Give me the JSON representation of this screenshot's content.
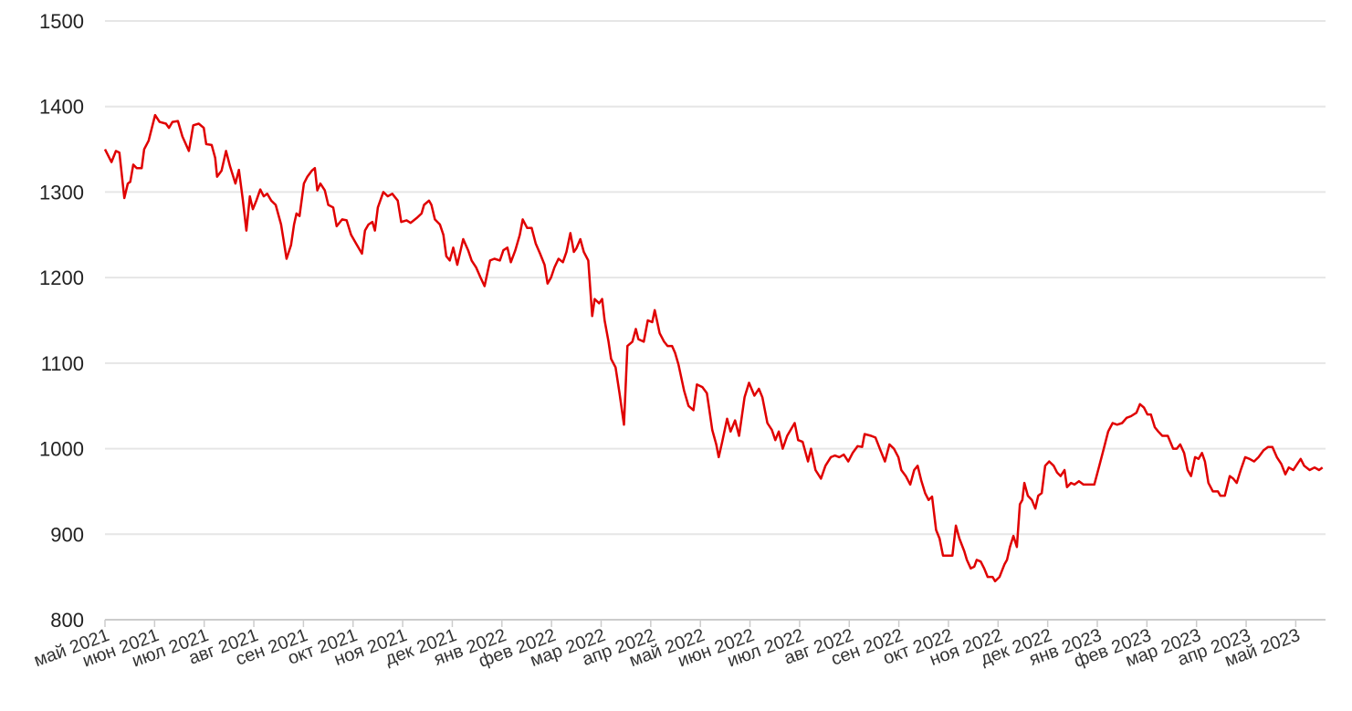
{
  "chart_data": {
    "type": "line",
    "xlim": [
      0,
      24.6
    ],
    "xticks": [
      {
        "value": 0,
        "label": "май 2021"
      },
      {
        "value": 1,
        "label": "июн 2021"
      },
      {
        "value": 2,
        "label": "июл 2021"
      },
      {
        "value": 3,
        "label": "авг 2021"
      },
      {
        "value": 4,
        "label": "сен 2021"
      },
      {
        "value": 5,
        "label": "окт 2021"
      },
      {
        "value": 6,
        "label": "ноя 2021"
      },
      {
        "value": 7,
        "label": "дек 2021"
      },
      {
        "value": 8,
        "label": "янв 2022"
      },
      {
        "value": 9,
        "label": "фев 2022"
      },
      {
        "value": 10,
        "label": "мар 2022"
      },
      {
        "value": 11,
        "label": "апр 2022"
      },
      {
        "value": 12,
        "label": "май 2022"
      },
      {
        "value": 13,
        "label": "июн 2022"
      },
      {
        "value": 14,
        "label": "июл 2022"
      },
      {
        "value": 15,
        "label": "авг 2022"
      },
      {
        "value": 16,
        "label": "сен 2022"
      },
      {
        "value": 17,
        "label": "окт 2022"
      },
      {
        "value": 18,
        "label": "ноя 2022"
      },
      {
        "value": 19,
        "label": "дек 2022"
      },
      {
        "value": 20,
        "label": "янв 2023"
      },
      {
        "value": 21,
        "label": "фев 2023"
      },
      {
        "value": 22,
        "label": "мар 2023"
      },
      {
        "value": 23,
        "label": "апр 2023"
      },
      {
        "value": 24,
        "label": "май 2023"
      }
    ],
    "ylim": [
      800,
      1500
    ],
    "yticks": [
      800,
      900,
      1000,
      1100,
      1200,
      1300,
      1400,
      1500
    ],
    "grid": true,
    "color": "#e00000",
    "x": [
      0,
      0.13,
      0.22,
      0.29,
      0.39,
      0.46,
      0.51,
      0.57,
      0.64,
      0.74,
      0.79,
      0.88,
      1.01,
      1.1,
      1.23,
      1.29,
      1.36,
      1.47,
      1.56,
      1.69,
      1.78,
      1.89,
      1.99,
      2.04,
      2.15,
      2.22,
      2.26,
      2.35,
      2.44,
      2.52,
      2.63,
      2.7,
      2.78,
      2.85,
      2.92,
      2.98,
      3.05,
      3.13,
      3.2,
      3.27,
      3.35,
      3.44,
      3.55,
      3.66,
      3.75,
      3.81,
      3.86,
      3.92,
      4.01,
      4.08,
      4.17,
      4.23,
      4.28,
      4.34,
      4.43,
      4.5,
      4.6,
      4.67,
      4.78,
      4.87,
      4.96,
      5.06,
      5.18,
      5.24,
      5.31,
      5.39,
      5.44,
      5.5,
      5.61,
      5.7,
      5.79,
      5.9,
      5.97,
      6.08,
      6.16,
      6.29,
      6.38,
      6.43,
      6.53,
      6.58,
      6.65,
      6.75,
      6.82,
      6.88,
      6.95,
      7.02,
      7.1,
      7.22,
      7.32,
      7.39,
      7.48,
      7.57,
      7.65,
      7.76,
      7.85,
      7.96,
      8.03,
      8.11,
      8.18,
      8.27,
      8.36,
      8.42,
      8.51,
      8.6,
      8.68,
      8.77,
      8.86,
      8.92,
      8.99,
      9.06,
      9.14,
      9.23,
      9.3,
      9.38,
      9.45,
      9.5,
      9.58,
      9.65,
      9.74,
      9.82,
      9.87,
      9.96,
      10.02,
      10.07,
      10.15,
      10.2,
      10.29,
      10.37,
      10.46,
      10.53,
      10.63,
      10.7,
      10.75,
      10.86,
      10.94,
      11.03,
      11.08,
      11.18,
      11.27,
      11.34,
      11.43,
      11.49,
      11.56,
      11.67,
      11.76,
      11.86,
      11.93,
      12.04,
      12.13,
      12.17,
      12.24,
      12.32,
      12.37,
      12.44,
      12.54,
      12.61,
      12.7,
      12.78,
      12.89,
      12.98,
      13.09,
      13.18,
      13.25,
      13.35,
      13.44,
      13.51,
      13.58,
      13.66,
      13.75,
      13.82,
      13.9,
      13.97,
      14.06,
      14.17,
      14.23,
      14.32,
      14.43,
      14.52,
      14.63,
      14.71,
      14.8,
      14.89,
      14.98,
      15.07,
      15.17,
      15.26,
      15.31,
      15.44,
      15.53,
      15.63,
      15.72,
      15.81,
      15.9,
      15.99,
      16.05,
      16.14,
      16.23,
      16.31,
      16.38,
      16.45,
      16.53,
      16.6,
      16.67,
      16.75,
      16.82,
      16.89,
      17,
      17.08,
      17.15,
      17.22,
      17.32,
      17.37,
      17.45,
      17.52,
      17.57,
      17.65,
      17.72,
      17.79,
      17.89,
      17.94,
      18.03,
      18.13,
      18.18,
      18.24,
      18.31,
      18.38,
      18.44,
      18.49,
      18.53,
      18.6,
      18.68,
      18.75,
      18.81,
      18.88,
      18.95,
      19.03,
      19.12,
      19.19,
      19.26,
      19.34,
      19.39,
      19.47,
      19.54,
      19.63,
      19.72,
      19.83,
      19.94,
      20.04,
      20.13,
      20.22,
      20.31,
      20.4,
      20.5,
      20.59,
      20.68,
      20.79,
      20.86,
      20.94,
      21.01,
      21.08,
      21.16,
      21.23,
      21.31,
      21.42,
      21.53,
      21.6,
      21.67,
      21.75,
      21.82,
      21.89,
      21.97,
      22.04,
      22.11,
      22.17,
      22.24,
      22.33,
      22.43,
      22.48,
      22.57,
      22.67,
      22.74,
      22.81,
      22.89,
      22.98,
      23.07,
      23.16,
      23.25,
      23.35,
      23.44,
      23.53,
      23.62,
      23.71,
      23.79,
      23.86,
      23.95,
      24.03,
      24.1,
      24.17,
      24.28,
      24.38,
      24.47,
      24.54
    ],
    "values": [
      1350,
      1335,
      1348,
      1346,
      1293,
      1310,
      1312,
      1332,
      1328,
      1328,
      1350,
      1360,
      1390,
      1382,
      1380,
      1375,
      1382,
      1383,
      1365,
      1348,
      1378,
      1380,
      1375,
      1356,
      1355,
      1340,
      1318,
      1325,
      1348,
      1330,
      1310,
      1326,
      1290,
      1255,
      1295,
      1280,
      1290,
      1303,
      1295,
      1298,
      1290,
      1285,
      1262,
      1222,
      1238,
      1262,
      1275,
      1272,
      1310,
      1318,
      1325,
      1328,
      1302,
      1310,
      1302,
      1285,
      1282,
      1260,
      1268,
      1267,
      1250,
      1240,
      1228,
      1255,
      1262,
      1265,
      1255,
      1282,
      1300,
      1295,
      1298,
      1290,
      1265,
      1267,
      1264,
      1270,
      1275,
      1285,
      1290,
      1285,
      1268,
      1262,
      1250,
      1225,
      1220,
      1235,
      1215,
      1245,
      1232,
      1220,
      1212,
      1200,
      1190,
      1220,
      1222,
      1220,
      1232,
      1235,
      1218,
      1232,
      1250,
      1268,
      1258,
      1258,
      1240,
      1228,
      1215,
      1193,
      1200,
      1212,
      1222,
      1218,
      1230,
      1252,
      1230,
      1234,
      1245,
      1230,
      1220,
      1155,
      1175,
      1170,
      1175,
      1150,
      1125,
      1105,
      1095,
      1065,
      1028,
      1120,
      1125,
      1140,
      1128,
      1125,
      1150,
      1148,
      1162,
      1135,
      1125,
      1120,
      1120,
      1112,
      1098,
      1068,
      1050,
      1045,
      1075,
      1072,
      1065,
      1050,
      1022,
      1005,
      990,
      1008,
      1035,
      1020,
      1033,
      1015,
      1060,
      1077,
      1062,
      1070,
      1060,
      1030,
      1022,
      1010,
      1020,
      1000,
      1015,
      1022,
      1030,
      1010,
      1008,
      985,
      1000,
      975,
      965,
      980,
      990,
      992,
      990,
      993,
      985,
      995,
      1003,
      1002,
      1017,
      1015,
      1013,
      998,
      985,
      1005,
      1000,
      990,
      975,
      968,
      958,
      975,
      980,
      963,
      948,
      940,
      944,
      905,
      895,
      875,
      875,
      875,
      910,
      895,
      880,
      870,
      860,
      862,
      870,
      868,
      860,
      850,
      850,
      845,
      850,
      865,
      870,
      885,
      898,
      885,
      935,
      940,
      960,
      945,
      940,
      930,
      945,
      948,
      980,
      985,
      980,
      972,
      968,
      975,
      955,
      960,
      958,
      962,
      958,
      958,
      958,
      980,
      1000,
      1020,
      1030,
      1028,
      1030,
      1036,
      1038,
      1042,
      1052,
      1048,
      1040,
      1040,
      1025,
      1020,
      1015,
      1015,
      1000,
      1000,
      1005,
      995,
      975,
      968,
      990,
      988,
      995,
      985,
      960,
      950,
      950,
      945,
      945,
      968,
      965,
      960,
      975,
      990,
      988,
      985,
      990,
      998,
      1002,
      1002,
      990,
      982,
      970,
      978,
      975,
      982,
      988,
      980,
      975,
      978,
      975,
      978
    ]
  }
}
